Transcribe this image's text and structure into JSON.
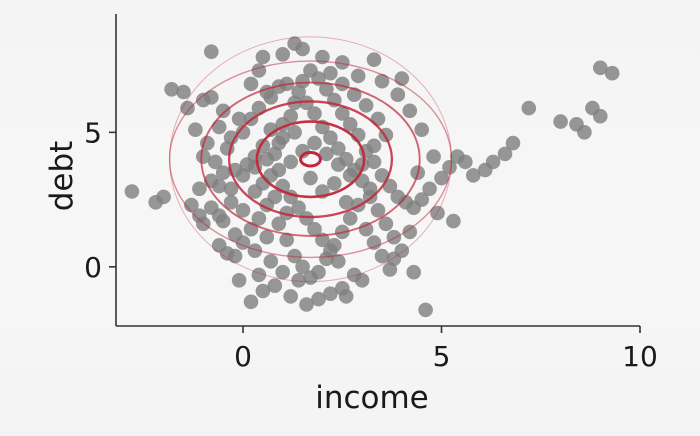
{
  "chart_data": {
    "type": "scatter",
    "xlabel": "income",
    "ylabel": "debt",
    "xlim": [
      -3.2,
      10
    ],
    "ylim": [
      -2.2,
      9.4
    ],
    "xticks": [
      0,
      5,
      10
    ],
    "yticks": [
      0,
      5
    ],
    "xtick_labels": [
      "0",
      "5",
      "10"
    ],
    "ytick_labels": [
      "0",
      "5"
    ],
    "grid": false,
    "point_color": "#808080",
    "contour_color": "#c0283a",
    "contour_center": [
      1.7,
      4.0
    ],
    "contour_levels": [
      {
        "rx": 0.25,
        "ry": 0.25,
        "width": 3.0,
        "opacity": 1.0
      },
      {
        "rx": 1.35,
        "ry": 1.4,
        "width": 2.6,
        "opacity": 0.95
      },
      {
        "rx": 2.05,
        "ry": 2.15,
        "width": 2.3,
        "opacity": 0.85
      },
      {
        "rx": 2.75,
        "ry": 2.85,
        "width": 1.9,
        "opacity": 0.7
      },
      {
        "rx": 3.55,
        "ry": 3.65,
        "width": 1.4,
        "opacity": 0.5
      },
      {
        "rx": 3.55,
        "ry": 4.55,
        "width": 1.0,
        "opacity": 0.35
      }
    ],
    "points": [
      [
        -2.8,
        2.8
      ],
      [
        -2.2,
        2.4
      ],
      [
        -2.0,
        2.6
      ],
      [
        -1.5,
        6.5
      ],
      [
        -1.0,
        6.2
      ],
      [
        -0.8,
        6.3
      ],
      [
        -0.5,
        5.8
      ],
      [
        -0.6,
        5.2
      ],
      [
        -0.3,
        4.8
      ],
      [
        -0.1,
        5.5
      ],
      [
        0.0,
        5.0
      ],
      [
        0.2,
        6.8
      ],
      [
        0.4,
        7.3
      ],
      [
        0.6,
        6.5
      ],
      [
        0.3,
        4.1
      ],
      [
        0.1,
        3.8
      ],
      [
        -0.5,
        3.5
      ],
      [
        -0.8,
        3.2
      ],
      [
        -1.1,
        2.9
      ],
      [
        -1.3,
        2.3
      ],
      [
        -1.0,
        1.6
      ],
      [
        -0.6,
        1.9
      ],
      [
        -0.3,
        2.4
      ],
      [
        0.0,
        2.1
      ],
      [
        0.3,
        2.8
      ],
      [
        0.5,
        3.1
      ],
      [
        0.7,
        3.4
      ],
      [
        0.8,
        4.2
      ],
      [
        0.9,
        4.6
      ],
      [
        1.0,
        5.3
      ],
      [
        1.2,
        5.6
      ],
      [
        1.3,
        6.1
      ],
      [
        1.5,
        6.9
      ],
      [
        1.7,
        7.3
      ],
      [
        1.9,
        7.0
      ],
      [
        2.1,
        6.6
      ],
      [
        2.3,
        6.2
      ],
      [
        2.5,
        5.7
      ],
      [
        2.7,
        5.3
      ],
      [
        2.9,
        4.9
      ],
      [
        3.1,
        4.3
      ],
      [
        3.3,
        3.9
      ],
      [
        3.5,
        3.4
      ],
      [
        3.7,
        3.0
      ],
      [
        3.9,
        2.6
      ],
      [
        4.1,
        2.4
      ],
      [
        4.3,
        2.2
      ],
      [
        4.5,
        2.5
      ],
      [
        4.7,
        2.9
      ],
      [
        5.0,
        3.3
      ],
      [
        5.2,
        3.7
      ],
      [
        5.4,
        4.1
      ],
      [
        5.6,
        3.9
      ],
      [
        5.8,
        3.4
      ],
      [
        6.1,
        3.6
      ],
      [
        6.3,
        3.9
      ],
      [
        6.6,
        4.2
      ],
      [
        6.8,
        4.6
      ],
      [
        7.2,
        5.9
      ],
      [
        8.0,
        5.4
      ],
      [
        8.4,
        5.3
      ],
      [
        8.6,
        5.0
      ],
      [
        8.8,
        5.9
      ],
      [
        9.0,
        5.6
      ],
      [
        9.0,
        7.4
      ],
      [
        9.3,
        7.2
      ],
      [
        0.0,
        0.9
      ],
      [
        0.3,
        0.6
      ],
      [
        0.6,
        1.1
      ],
      [
        0.9,
        1.6
      ],
      [
        1.1,
        1.0
      ],
      [
        1.3,
        0.4
      ],
      [
        1.5,
        0.0
      ],
      [
        1.7,
        -0.4
      ],
      [
        1.9,
        -0.2
      ],
      [
        2.1,
        0.3
      ],
      [
        2.3,
        0.8
      ],
      [
        2.5,
        1.3
      ],
      [
        2.7,
        1.8
      ],
      [
        2.9,
        2.3
      ],
      [
        3.1,
        1.4
      ],
      [
        3.3,
        0.9
      ],
      [
        3.5,
        0.4
      ],
      [
        3.7,
        -0.1
      ],
      [
        2.8,
        -0.3
      ],
      [
        2.5,
        -0.8
      ],
      [
        2.2,
        -1.0
      ],
      [
        1.9,
        -1.2
      ],
      [
        1.6,
        -1.4
      ],
      [
        1.2,
        -1.1
      ],
      [
        0.8,
        -0.7
      ],
      [
        0.5,
        -0.9
      ],
      [
        0.2,
        -1.3
      ],
      [
        -0.1,
        -0.5
      ],
      [
        -0.4,
        0.5
      ],
      [
        4.6,
        -1.6
      ],
      [
        4.3,
        -0.2
      ],
      [
        4.0,
        0.6
      ],
      [
        3.8,
        1.1
      ],
      [
        3.6,
        1.6
      ],
      [
        3.4,
        2.1
      ],
      [
        3.2,
        2.6
      ],
      [
        1.0,
        7.9
      ],
      [
        1.3,
        8.3
      ],
      [
        0.5,
        7.8
      ],
      [
        -0.8,
        8.0
      ],
      [
        -1.8,
        6.6
      ],
      [
        -1.4,
        5.9
      ],
      [
        -1.2,
        5.1
      ],
      [
        -0.9,
        4.6
      ],
      [
        -1.0,
        4.1
      ],
      [
        -0.7,
        3.9
      ],
      [
        -0.4,
        4.4
      ],
      [
        0.2,
        5.5
      ],
      [
        0.4,
        5.9
      ],
      [
        0.7,
        6.3
      ],
      [
        0.9,
        6.7
      ],
      [
        1.1,
        6.8
      ],
      [
        1.4,
        6.5
      ],
      [
        1.6,
        6.1
      ],
      [
        1.8,
        5.7
      ],
      [
        2.0,
        5.2
      ],
      [
        2.2,
        4.8
      ],
      [
        2.4,
        4.4
      ],
      [
        2.6,
        4.0
      ],
      [
        2.8,
        3.6
      ],
      [
        3.0,
        3.2
      ],
      [
        3.2,
        2.9
      ],
      [
        1.0,
        3.0
      ],
      [
        1.2,
        2.6
      ],
      [
        1.4,
        2.2
      ],
      [
        1.6,
        1.8
      ],
      [
        1.8,
        1.4
      ],
      [
        2.0,
        1.0
      ],
      [
        2.2,
        0.6
      ],
      [
        2.4,
        0.2
      ],
      [
        0.6,
        2.3
      ],
      [
        0.4,
        1.8
      ],
      [
        0.2,
        1.4
      ],
      [
        -0.2,
        1.2
      ],
      [
        -0.5,
        1.7
      ],
      [
        -0.8,
        2.2
      ],
      [
        -1.1,
        1.9
      ],
      [
        -0.3,
        2.9
      ],
      [
        0.0,
        3.4
      ],
      [
        0.3,
        3.7
      ],
      [
        0.6,
        4.0
      ],
      [
        0.9,
        3.6
      ],
      [
        1.2,
        3.9
      ],
      [
        1.5,
        4.3
      ],
      [
        1.8,
        4.6
      ],
      [
        2.1,
        4.2
      ],
      [
        2.4,
        3.8
      ],
      [
        2.7,
        3.4
      ],
      [
        3.0,
        3.8
      ],
      [
        3.3,
        4.5
      ],
      [
        3.6,
        4.9
      ],
      [
        3.4,
        5.5
      ],
      [
        3.1,
        6.0
      ],
      [
        2.8,
        6.4
      ],
      [
        2.5,
        6.8
      ],
      [
        2.2,
        7.2
      ],
      [
        3.5,
        6.9
      ],
      [
        3.9,
        6.4
      ],
      [
        4.2,
        5.8
      ],
      [
        4.5,
        5.1
      ],
      [
        4.8,
        4.1
      ],
      [
        4.4,
        3.5
      ],
      [
        1.5,
        8.1
      ],
      [
        2.5,
        7.6
      ],
      [
        2.9,
        7.1
      ],
      [
        3.3,
        7.7
      ],
      [
        4.0,
        7.0
      ],
      [
        2.0,
        7.8
      ],
      [
        0.7,
        5.1
      ],
      [
        1.0,
        4.8
      ],
      [
        0.5,
        4.5
      ],
      [
        -0.2,
        3.6
      ],
      [
        -0.6,
        3.0
      ],
      [
        1.3,
        5.0
      ],
      [
        5.3,
        1.7
      ],
      [
        4.9,
        2.0
      ],
      [
        4.2,
        1.3
      ],
      [
        3.8,
        0.3
      ],
      [
        3.0,
        -0.5
      ],
      [
        2.6,
        -1.1
      ],
      [
        1.4,
        -0.5
      ],
      [
        1.0,
        -0.2
      ],
      [
        0.7,
        0.2
      ],
      [
        0.4,
        -0.3
      ],
      [
        -0.2,
        0.4
      ],
      [
        -0.6,
        0.8
      ],
      [
        2.0,
        2.8
      ],
      [
        2.3,
        3.1
      ],
      [
        1.7,
        3.3
      ],
      [
        1.1,
        2.0
      ],
      [
        0.8,
        2.6
      ],
      [
        2.6,
        2.4
      ]
    ]
  }
}
